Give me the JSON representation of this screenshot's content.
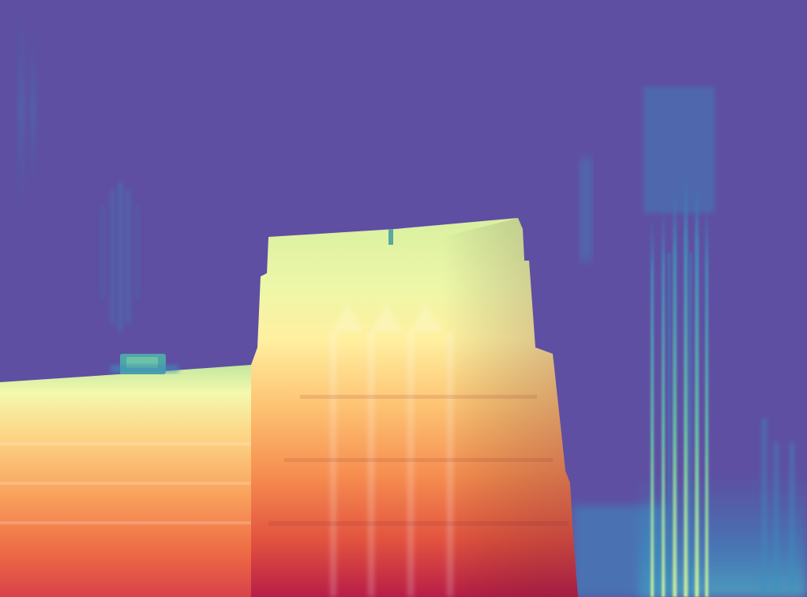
{
  "image": {
    "kind": "depth-map",
    "colormap": "spectral",
    "palette": {
      "far": "#5e4fa2",
      "mid_far": "#3288bd",
      "mid": "#66c2a5",
      "mid_near": "#e6f598",
      "near_light": "#fee08b",
      "near": "#f46d43",
      "nearest": "#9e0142"
    },
    "regions": [
      {
        "name": "sky-background"
      },
      {
        "name": "tall-building-tower"
      },
      {
        "name": "low-building-left"
      },
      {
        "name": "rooftop-ac-unit"
      },
      {
        "name": "distant-building-right"
      },
      {
        "name": "distant-building-left"
      }
    ]
  }
}
